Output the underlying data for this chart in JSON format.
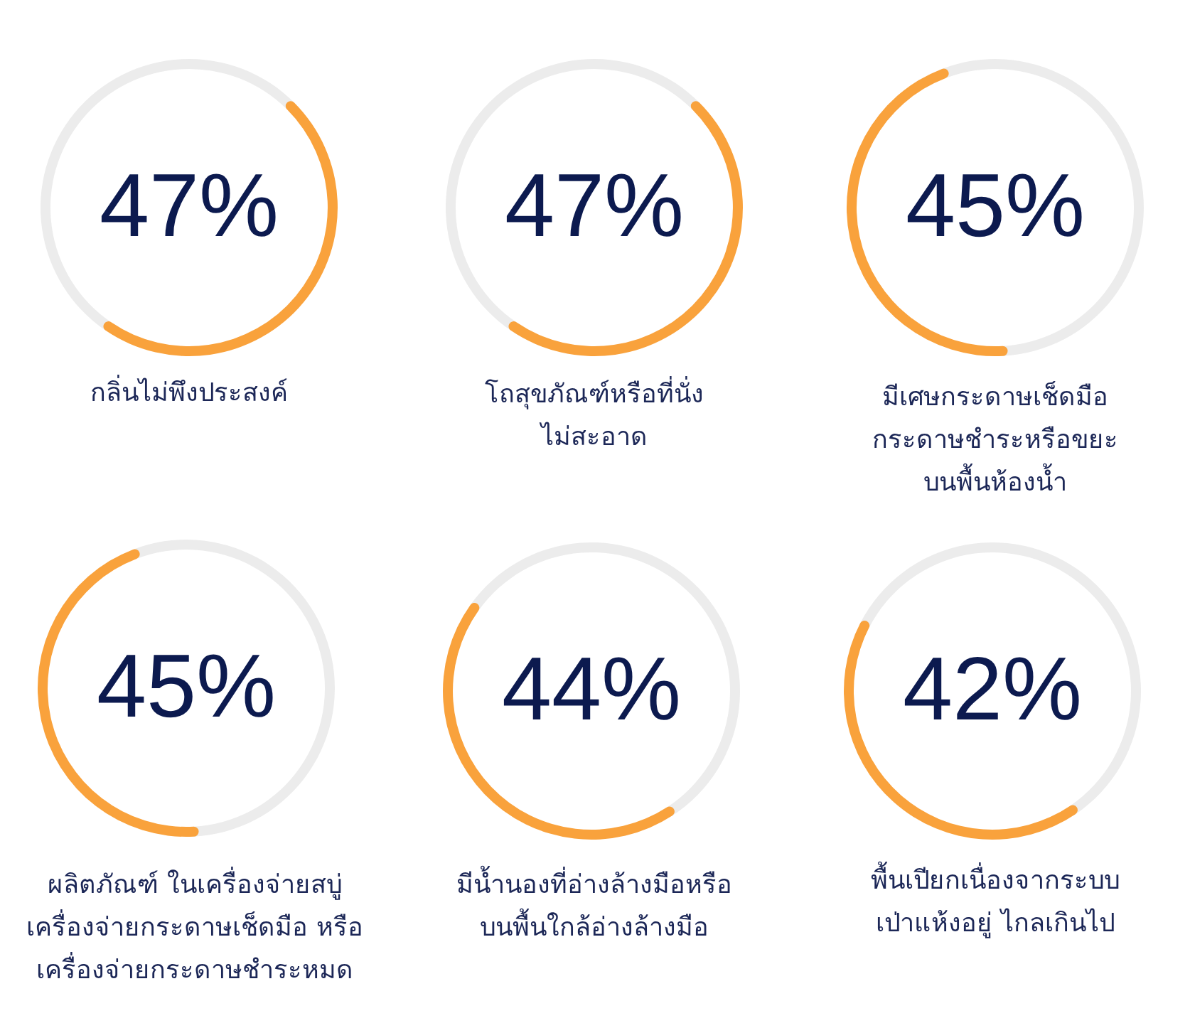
{
  "chart_data": [
    {
      "type": "donut",
      "title": "กลิ่นไม่พึงประสงค์",
      "categories": [
        null,
        null
      ],
      "values": [
        47,
        53
      ],
      "colors": [
        "#f9a23c",
        "#ececec"
      ],
      "annotations": [
        "47%"
      ]
    },
    {
      "type": "donut",
      "title": "โถสุขภัณฑ์หรือที่นั่ง\nไม่สะอาด",
      "categories": [
        null,
        null
      ],
      "values": [
        47,
        53
      ],
      "colors": [
        "#f9a23c",
        "#ececec"
      ],
      "annotations": [
        "47%"
      ]
    },
    {
      "type": "donut",
      "title": "มีเศษกระดาษเช็ดมือ\nกระดาษชำระหรือขยะ\nบนพื้นห้องน้ำ",
      "categories": [
        null,
        null
      ],
      "values": [
        45,
        55
      ],
      "colors": [
        "#f9a23c",
        "#ececec"
      ],
      "annotations": [
        "45%"
      ]
    },
    {
      "type": "donut",
      "title": "ผลิตภัณฑ์ ในเครื่องจ่ายสบู่\nเครื่องจ่ายกระดาษเช็ดมือ หรือ\nเครื่องจ่ายกระดาษชำระหมด",
      "categories": [
        null,
        null
      ],
      "values": [
        45,
        55
      ],
      "colors": [
        "#f9a23c",
        "#ececec"
      ],
      "annotations": [
        "45%"
      ]
    },
    {
      "type": "donut",
      "title": "มีน้ำนองที่อ่างล้างมือหรือ\nบนพื้นใกล้อ่างล้างมือ",
      "categories": [
        null,
        null
      ],
      "values": [
        44,
        56
      ],
      "colors": [
        "#f9a23c",
        "#ececec"
      ],
      "annotations": [
        "44%"
      ]
    },
    {
      "type": "donut",
      "title": "พื้นเปียกเนื่องจากระบบ\nเป่าแห้งอยู่ ไกลเกินไป",
      "categories": [
        null,
        null
      ],
      "values": [
        42,
        58
      ],
      "colors": [
        "#f9a23c",
        "#ececec"
      ],
      "annotations": [
        "42%"
      ]
    }
  ]
}
